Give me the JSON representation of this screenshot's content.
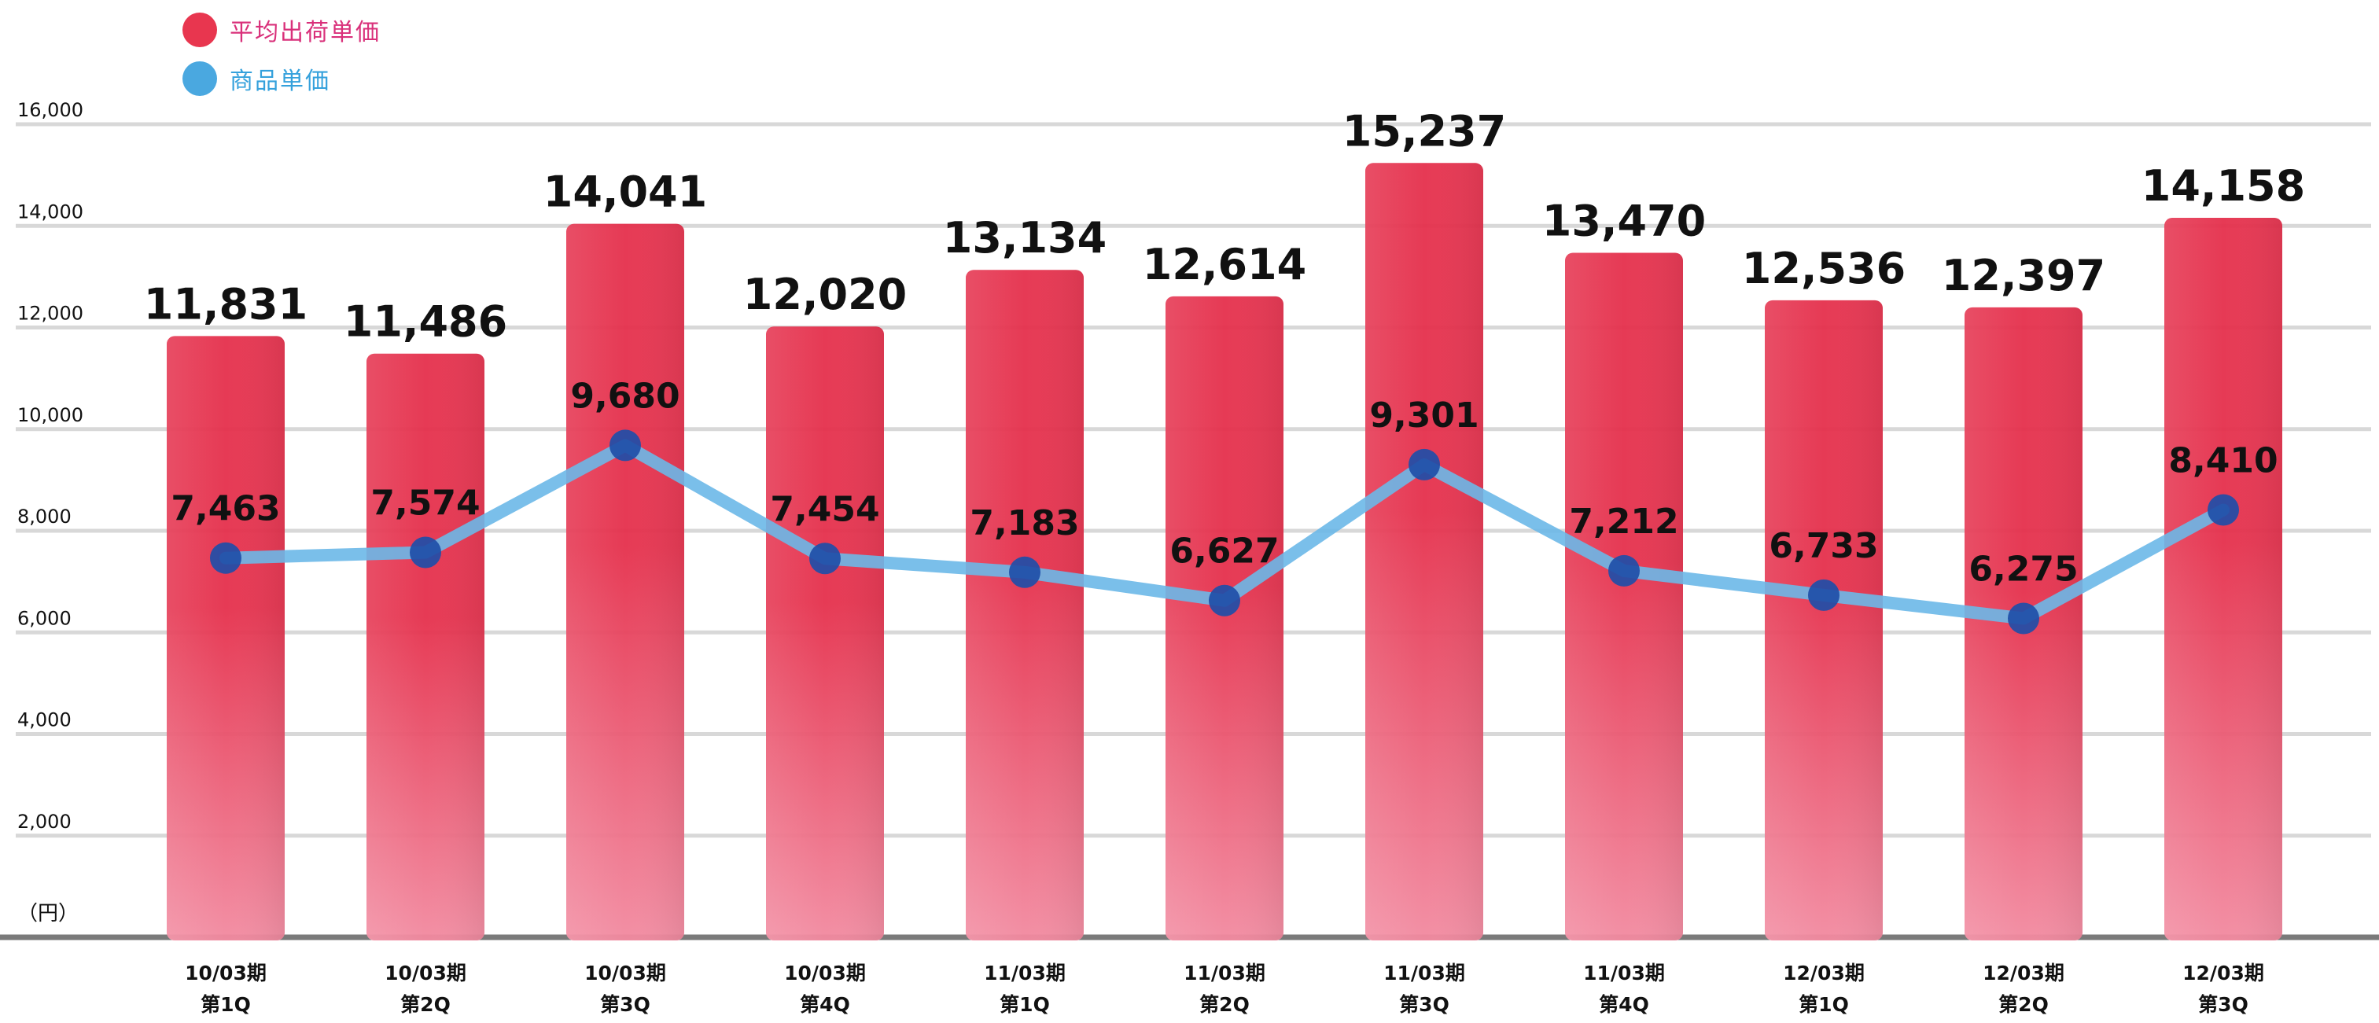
{
  "legend": [
    {
      "label": "平均出荷単価",
      "color": "#e8364f",
      "text_color": "#d9307a"
    },
    {
      "label": "商品単価",
      "color": "#4aa8e0",
      "text_color": "#35a1dc"
    }
  ],
  "colors": {
    "bar": "#e5304c",
    "bar_light": "#f28aa0",
    "line": "#6cb8e8",
    "marker": "#1f4ea8",
    "gridline": "#d8d8d8",
    "baseline": "#7a7a7a",
    "text": "#111111"
  },
  "chart_data": {
    "type": "bar",
    "categories": [
      [
        "10/03期",
        "第1Q"
      ],
      [
        "10/03期",
        "第2Q"
      ],
      [
        "10/03期",
        "第3Q"
      ],
      [
        "10/03期",
        "第4Q"
      ],
      [
        "11/03期",
        "第1Q"
      ],
      [
        "11/03期",
        "第2Q"
      ],
      [
        "11/03期",
        "第3Q"
      ],
      [
        "11/03期",
        "第4Q"
      ],
      [
        "12/03期",
        "第1Q"
      ],
      [
        "12/03期",
        "第2Q"
      ],
      [
        "12/03期",
        "第3Q"
      ]
    ],
    "series": [
      {
        "name": "平均出荷単価",
        "type": "bar",
        "values": [
          11831,
          11486,
          14041,
          12020,
          13134,
          12614,
          15237,
          13470,
          12536,
          12397,
          14158
        ],
        "labels": [
          "11,831",
          "11,486",
          "14,041",
          "12,020",
          "13,134",
          "12,614",
          "15,237",
          "13,470",
          "12,536",
          "12,397",
          "14,158"
        ]
      },
      {
        "name": "商品単価",
        "type": "line",
        "values": [
          7463,
          7574,
          9680,
          7454,
          7183,
          6627,
          9301,
          7212,
          6733,
          6275,
          8410
        ],
        "labels": [
          "7,463",
          "7,574",
          "9,680",
          "7,454",
          "7,183",
          "6,627",
          "9,301",
          "7,212",
          "6,733",
          "6,275",
          "8,410"
        ]
      }
    ],
    "yticks": [
      2000,
      4000,
      6000,
      8000,
      10000,
      12000,
      14000,
      16000
    ],
    "ytick_labels": [
      "2,000",
      "4,000",
      "6,000",
      "8,000",
      "10,000",
      "12,000",
      "14,000",
      "16,000"
    ],
    "ylabel": "（円）",
    "ylim": [
      0,
      16000
    ],
    "grid": true,
    "legend_position": "top-left"
  }
}
